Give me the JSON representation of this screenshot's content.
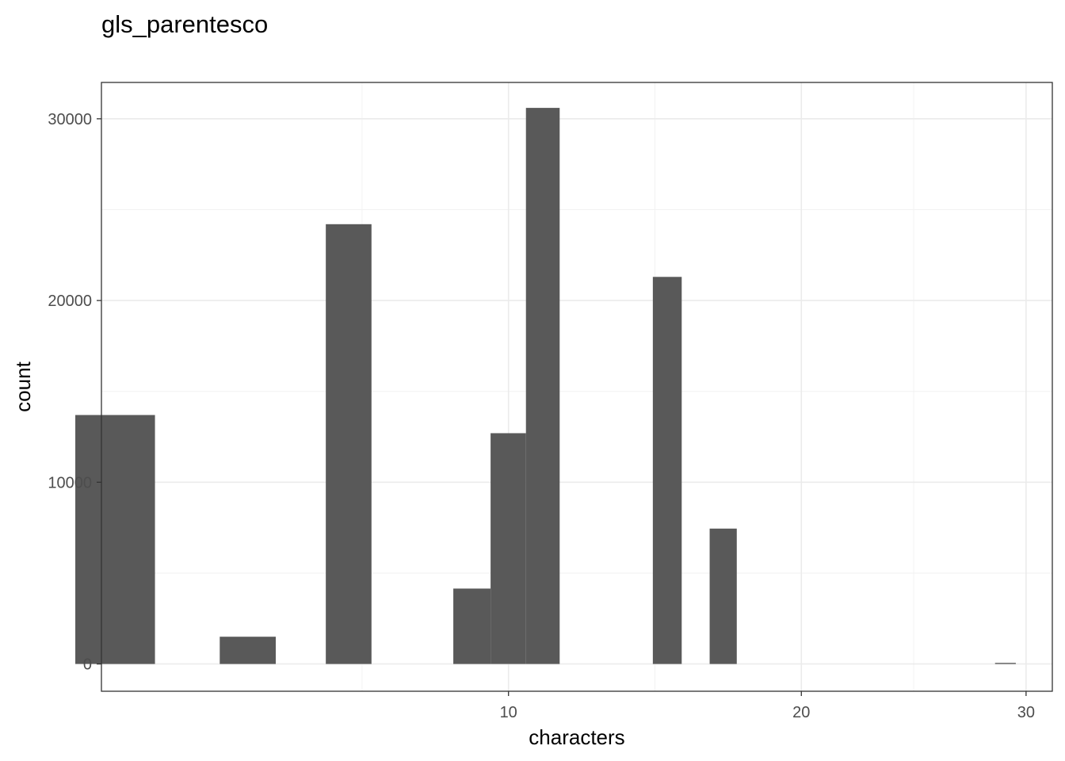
{
  "chart_data": {
    "type": "bar",
    "title": "gls_parentesco",
    "xlabel": "characters",
    "ylabel": "count",
    "x_scale": "sqrt",
    "xlim": [
      1.8,
      31.3
    ],
    "ylim": [
      -1500,
      32000
    ],
    "x_ticks": [
      10,
      20,
      30
    ],
    "y_ticks": [
      0,
      10000,
      20000,
      30000
    ],
    "grid": true,
    "bar_color": "#595959",
    "bars": [
      {
        "x": 2,
        "value": 13700
      },
      {
        "x": 4,
        "value": 1500
      },
      {
        "x": 6,
        "value": 24200
      },
      {
        "x": 9,
        "value": 4150
      },
      {
        "x": 10,
        "value": 12700
      },
      {
        "x": 11,
        "value": 30600
      },
      {
        "x": 15,
        "value": 21300
      },
      {
        "x": 17,
        "value": 7450
      },
      {
        "x": 29,
        "value": 60
      }
    ]
  }
}
